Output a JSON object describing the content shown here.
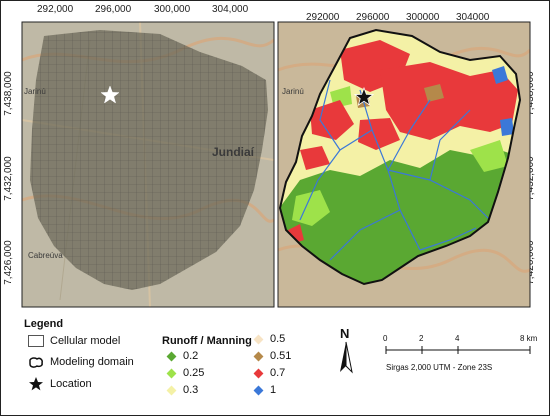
{
  "map_left": {
    "x_ticks": [
      "292,000",
      "296,000",
      "300,000",
      "304,000"
    ],
    "y_ticks": [
      "7,438,000",
      "7,432,000",
      "7,426,000"
    ],
    "places": [
      "Jundiaí",
      "Cabreúva",
      "Jarinú"
    ]
  },
  "map_right": {
    "x_ticks": [
      "292000",
      "296000",
      "300000",
      "304000"
    ],
    "y_ticks": [
      "7,438,000",
      "7,432,000",
      "7,426,000"
    ]
  },
  "legend": {
    "title": "Legend",
    "items": [
      {
        "label": "Cellular model",
        "icon": "box-icon"
      },
      {
        "label": "Modeling domain",
        "icon": "outline-shape-icon"
      },
      {
        "label": "Location",
        "icon": "star-icon"
      }
    ]
  },
  "classes": {
    "title": "Runoff / Manning",
    "items": [
      {
        "label": "0.2",
        "color": "#5aa832"
      },
      {
        "label": "0.25",
        "color": "#9ee24a"
      },
      {
        "label": "0.3",
        "color": "#f4f1a6"
      },
      {
        "label": "0.5",
        "color": "#f7e3c4"
      },
      {
        "label": "0.51",
        "color": "#b5894a"
      },
      {
        "label": "0.7",
        "color": "#e8393b"
      },
      {
        "label": "1",
        "color": "#3b78d8"
      }
    ]
  },
  "north": {
    "label": "N"
  },
  "scale": {
    "ticks": [
      "0",
      "2",
      "4",
      "8 km"
    ],
    "caption": "Sirgas 2,000 UTM - Zone 23S"
  }
}
